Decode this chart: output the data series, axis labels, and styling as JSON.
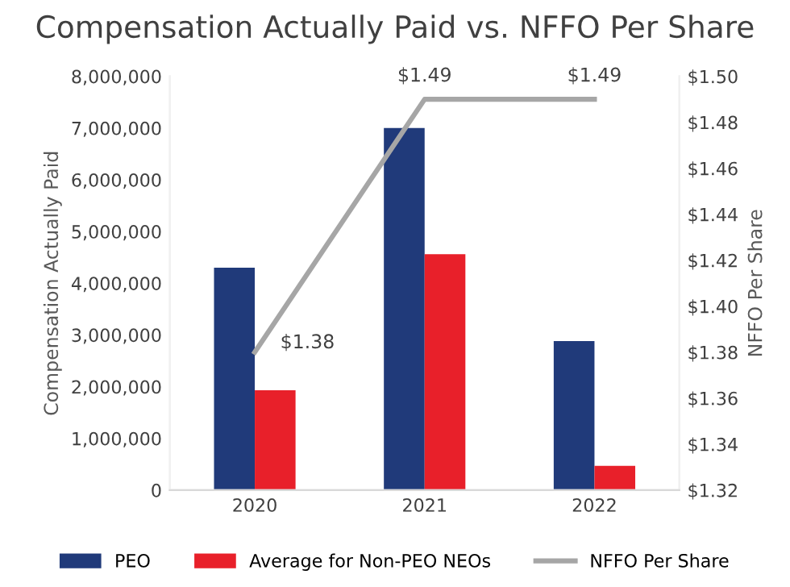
{
  "chart_data": {
    "type": "bar",
    "title": "Compensation Actually Paid vs. NFFO Per Share",
    "ylabel": "Compensation Actually Paid",
    "y2label": "NFFO Per Share",
    "categories": [
      "2020",
      "2021",
      "2022"
    ],
    "series": [
      {
        "name": "PEO",
        "color": "#203a7a",
        "values": [
          4300000,
          7000000,
          2880000
        ]
      },
      {
        "name": "Average for Non-PEO NEOs",
        "color": "#e8202a",
        "values": [
          1930000,
          4560000,
          470000
        ]
      },
      {
        "name": "NFFO Per Share",
        "type": "line",
        "axis": "y2",
        "color": "#a6a6a6",
        "values": [
          1.38,
          1.49,
          1.49
        ],
        "value_labels": [
          "$1.38",
          "$1.49",
          "$1.49"
        ]
      }
    ],
    "ylim": [
      0,
      8000000
    ],
    "yticks": [
      {
        "value": 0,
        "label": "0"
      },
      {
        "value": 1000000,
        "label": "1,000,000"
      },
      {
        "value": 2000000,
        "label": "2,000,000"
      },
      {
        "value": 3000000,
        "label": "3,000,000"
      },
      {
        "value": 4000000,
        "label": "4,000,000"
      },
      {
        "value": 5000000,
        "label": "5,000,000"
      },
      {
        "value": 6000000,
        "label": "6,000,000"
      },
      {
        "value": 7000000,
        "label": "7,000,000"
      },
      {
        "value": 8000000,
        "label": "8,000,000"
      }
    ],
    "y2lim": [
      1.32,
      1.5
    ],
    "y2ticks": [
      {
        "value": 1.32,
        "label": "$1.32"
      },
      {
        "value": 1.34,
        "label": "$1.34"
      },
      {
        "value": 1.36,
        "label": "$1.36"
      },
      {
        "value": 1.38,
        "label": "$1.38"
      },
      {
        "value": 1.4,
        "label": "$1.40"
      },
      {
        "value": 1.42,
        "label": "$1.42"
      },
      {
        "value": 1.44,
        "label": "$1.44"
      },
      {
        "value": 1.46,
        "label": "$1.46"
      },
      {
        "value": 1.48,
        "label": "$1.48"
      },
      {
        "value": 1.5,
        "label": "$1.50"
      }
    ],
    "grid": false,
    "legend": "bottom",
    "marker": "none",
    "line_style": "solid"
  }
}
